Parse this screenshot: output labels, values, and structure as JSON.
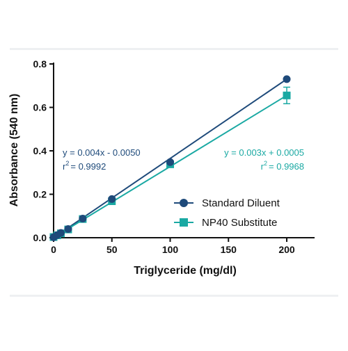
{
  "chart_data": {
    "type": "scatter",
    "title": "",
    "xlabel": "Triglyceride (mg/dl)",
    "ylabel": "Absorbance (540 nm)",
    "xlim": [
      0,
      200
    ],
    "ylim": [
      0,
      0.8
    ],
    "x_ticks": [
      "0",
      "50",
      "100",
      "150",
      "200"
    ],
    "y_ticks": [
      "0.0",
      "0.2",
      "0.4",
      "0.6",
      "0.8"
    ],
    "grid": false,
    "legend_position": "bottom-right",
    "series": [
      {
        "name": "Standard Diluent",
        "color": "#1e4a7a",
        "marker": "circle",
        "x": [
          0,
          3.125,
          6.25,
          12.5,
          25,
          50,
          100,
          200
        ],
        "y": [
          0.002,
          0.012,
          0.022,
          0.04,
          0.088,
          0.178,
          0.348,
          0.73
        ],
        "fit_equation": "y = 0.004x - 0.0050",
        "r2_label": "r",
        "r2_sup": "2",
        "r2_value": "= 0.9992",
        "fit": {
          "slope": 0.00366,
          "intercept": -0.005
        }
      },
      {
        "name": "NP40 Substitute",
        "color": "#1aa9a3",
        "marker": "square",
        "x": [
          0,
          3.125,
          6.25,
          12.5,
          25,
          50,
          100,
          200
        ],
        "y": [
          0.003,
          0.011,
          0.02,
          0.038,
          0.086,
          0.168,
          0.338,
          0.655
        ],
        "error": [
          0,
          0,
          0,
          0,
          0,
          0,
          0,
          0.038
        ],
        "fit_equation": "y = 0.003x + 0.0005",
        "r2_label": "r",
        "r2_sup": "2",
        "r2_value": "= 0.9968",
        "fit": {
          "slope": 0.0033,
          "intercept": 0.0005
        }
      }
    ]
  }
}
